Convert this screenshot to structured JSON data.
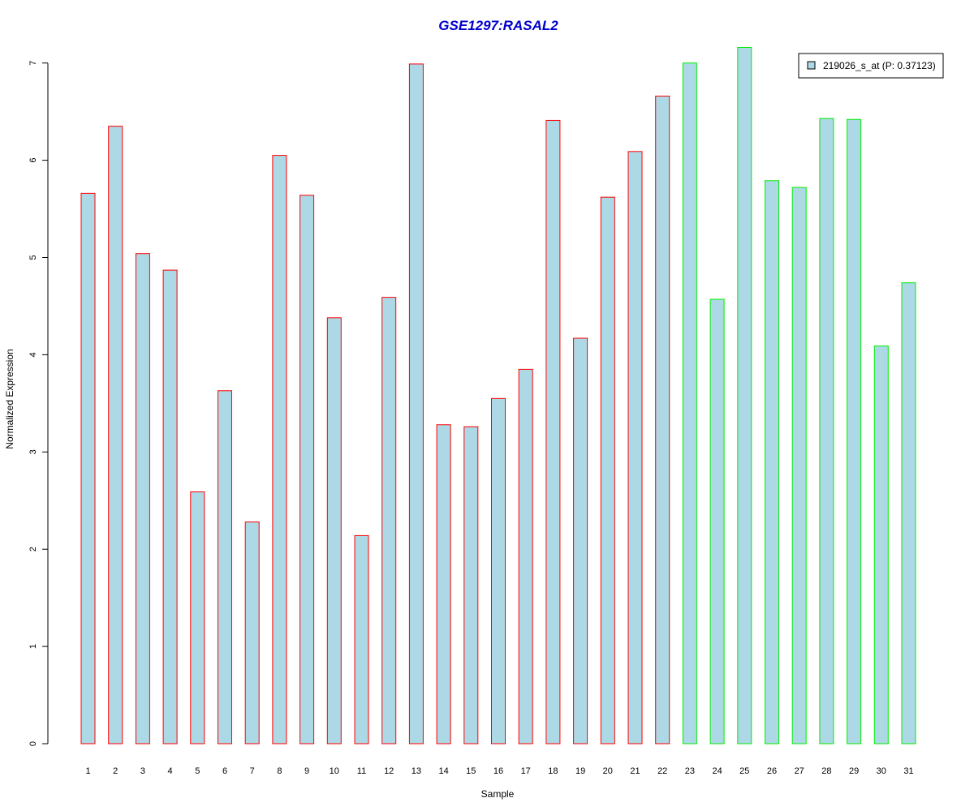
{
  "chart_data": {
    "type": "bar",
    "title": "GSE1297:RASAL2",
    "xlabel": "Sample",
    "ylabel": "Normalized Expression",
    "ylim": [
      0,
      7.2
    ],
    "yticks": [
      "0",
      "1",
      "2",
      "3",
      "4",
      "5",
      "6",
      "7"
    ],
    "categories": [
      "1",
      "2",
      "3",
      "4",
      "5",
      "6",
      "7",
      "8",
      "9",
      "10",
      "11",
      "12",
      "13",
      "14",
      "15",
      "16",
      "17",
      "18",
      "19",
      "20",
      "21",
      "22",
      "23",
      "24",
      "25",
      "26",
      "27",
      "28",
      "29",
      "30",
      "31"
    ],
    "series": [
      {
        "name": "219026_s_at (P: 0.37123)",
        "values": [
          5.66,
          6.35,
          5.04,
          4.87,
          2.59,
          3.63,
          2.28,
          6.05,
          5.64,
          4.38,
          2.14,
          4.59,
          6.99,
          3.28,
          3.26,
          3.55,
          3.85,
          6.41,
          4.17,
          5.62,
          6.09,
          6.66,
          7.0,
          4.57,
          7.16,
          5.79,
          5.72,
          6.43,
          6.42,
          4.09,
          4.74
        ]
      }
    ],
    "groups": [
      {
        "from": 1,
        "to": 22,
        "border_color": "#ff0000"
      },
      {
        "from": 23,
        "to": 31,
        "border_color": "#00ee00"
      }
    ],
    "bar_fill": "#add8e6",
    "title_color": "#0000cd",
    "legend_placement": "top-right",
    "grid": false
  }
}
